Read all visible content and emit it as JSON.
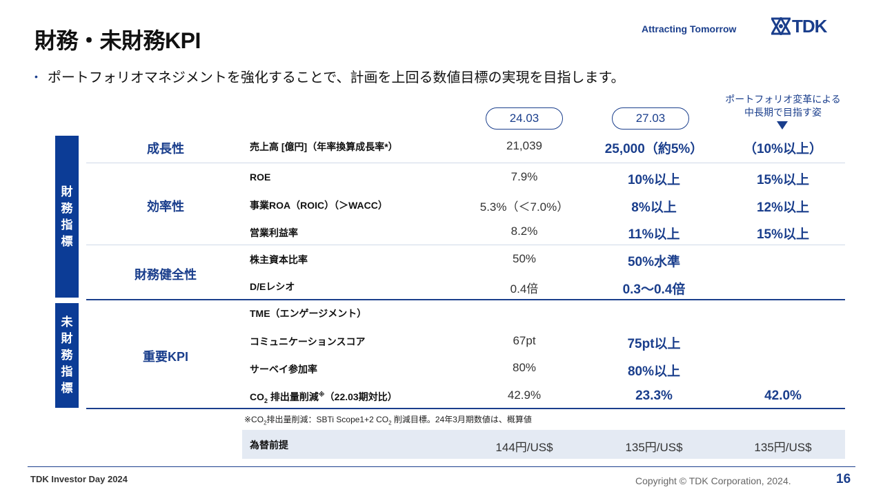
{
  "header": {
    "title": "財務・未財務KPI",
    "tagline": "Attracting Tomorrow",
    "logo_text": "TDK",
    "logo_icon": "tdk-emblem-icon"
  },
  "bullet": {
    "text": "ポートフォリオマネジメントを強化することで、計画を上回る数値目標の実現を目指します。"
  },
  "columns": {
    "fy1": "24.03",
    "fy2": "27.03",
    "vision_line1": "ポートフォリオ変革による",
    "vision_line2": "中長期で目指す姿"
  },
  "sidebar": {
    "financial": [
      "財",
      "務",
      "指",
      "標"
    ],
    "nonfinancial": [
      "未",
      "財",
      "務",
      "指",
      "標"
    ]
  },
  "categories": {
    "growth": "成長性",
    "efficiency": "効率性",
    "soundness": "財務健全性",
    "key_kpi": "重要KPI"
  },
  "rows": {
    "sales": {
      "label": "売上高 [億円]（年率換算成長率*）",
      "v1": "21,039",
      "v2": "25,000（約5%）",
      "v3": "（10%以上）"
    },
    "roe": {
      "label": "ROE",
      "v1": "7.9%",
      "v2": "10%以上",
      "v3": "15%以上"
    },
    "roa": {
      "label": "事業ROA（ROIC）（＞WACC）",
      "v1": "5.3%（＜7.0%）",
      "v2": "8%以上",
      "v3": "12%以上"
    },
    "opm": {
      "label": "営業利益率",
      "v1": "8.2%",
      "v2": "11%以上",
      "v3": "15%以上"
    },
    "equity": {
      "label": "株主資本比率",
      "v1": "50%",
      "v2": "50%水準"
    },
    "de": {
      "label": "D/Eレシオ",
      "v1": "0.4倍",
      "v2": "0.3～0.4倍"
    },
    "tme": {
      "label": "TME（エンゲージメント）"
    },
    "comm": {
      "label": "コミュニケーションスコア",
      "v1": "67pt",
      "v2": "75pt以上"
    },
    "survey": {
      "label": "サーベイ参加率",
      "v1": "80%",
      "v2": "80%以上"
    },
    "co2": {
      "label_pre": "CO",
      "label_sub": "2",
      "label_mid": " 排出量削減",
      "label_sup": "※",
      "label_post": "（22.03期対比）",
      "v1": "42.9%",
      "v2": "23.3%",
      "v3": "42.0%"
    }
  },
  "note": {
    "pre": "※CO",
    "sub1": "2",
    "mid": "排出量削減：SBTi Scope1+2 CO",
    "sub2": "2",
    "post": " 削減目標。24年3月期数値は、概算値"
  },
  "fx": {
    "label": "為替前提",
    "v1": "144円/US$",
    "v2": "135円/US$",
    "v3": "135円/US$"
  },
  "footer": {
    "event": "TDK Investor Day 2024",
    "copyright": "Copyright  © TDK Corporation, 2024.",
    "page": "16"
  },
  "colors": {
    "accent": "#1a3e8c",
    "sidebar": "#0c3c96",
    "fx_bg": "#e4eaf3"
  }
}
